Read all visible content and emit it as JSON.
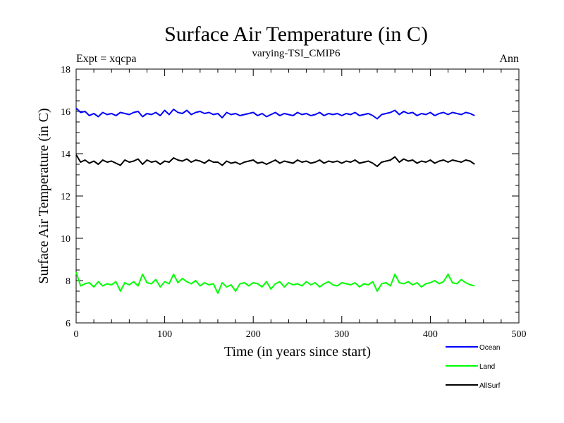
{
  "chart_data": {
    "type": "line",
    "title": "Surface Air Temperature (in C)",
    "subtitle": "varying-TSI_CMIP6",
    "experiment_label": "Expt = xqcpa",
    "period_label": "Ann",
    "xlabel": "Time (in years since start)",
    "ylabel": "Surface Air Temperature (in C)",
    "xlim": [
      0,
      500
    ],
    "ylim": [
      6,
      18
    ],
    "x_ticks": [
      0,
      100,
      200,
      300,
      400,
      500
    ],
    "y_ticks": [
      6,
      8,
      10,
      12,
      14,
      16,
      18
    ],
    "x_minor_step": 20,
    "y_minor_step": 0.5,
    "grid": false,
    "legend_position": "bottom-right",
    "series": [
      {
        "name": "Ocean",
        "color": "#0000ff",
        "x": [
          0,
          5,
          10,
          15,
          20,
          25,
          30,
          35,
          40,
          45,
          50,
          55,
          60,
          65,
          70,
          75,
          80,
          85,
          90,
          95,
          100,
          105,
          110,
          115,
          120,
          125,
          130,
          135,
          140,
          145,
          150,
          155,
          160,
          165,
          170,
          175,
          180,
          185,
          190,
          195,
          200,
          205,
          210,
          215,
          220,
          225,
          230,
          235,
          240,
          245,
          250,
          255,
          260,
          265,
          270,
          275,
          280,
          285,
          290,
          295,
          300,
          305,
          310,
          315,
          320,
          325,
          330,
          335,
          340,
          345,
          350,
          355,
          360,
          365,
          370,
          375,
          380,
          385,
          390,
          395,
          400,
          405,
          410,
          415,
          420,
          425,
          430,
          435,
          440,
          445,
          450
        ],
        "values": [
          16.15,
          15.95,
          16.0,
          15.8,
          15.9,
          15.75,
          15.95,
          15.85,
          15.9,
          15.8,
          15.95,
          15.9,
          15.85,
          15.95,
          16.0,
          15.75,
          15.9,
          15.85,
          15.95,
          15.8,
          16.05,
          15.85,
          16.1,
          15.95,
          15.9,
          16.05,
          15.85,
          15.95,
          16.0,
          15.9,
          15.95,
          15.85,
          15.9,
          15.7,
          15.95,
          15.85,
          15.9,
          15.8,
          15.85,
          15.9,
          15.95,
          15.8,
          15.9,
          15.75,
          15.85,
          15.95,
          15.8,
          15.9,
          15.85,
          15.8,
          15.95,
          15.85,
          15.9,
          15.8,
          15.85,
          15.95,
          15.8,
          15.9,
          15.85,
          15.9,
          15.8,
          15.9,
          15.85,
          15.95,
          15.8,
          15.85,
          15.9,
          15.8,
          15.65,
          15.85,
          15.9,
          15.95,
          16.05,
          15.85,
          16.0,
          15.9,
          15.95,
          15.8,
          15.9,
          15.85,
          15.95,
          15.8,
          15.9,
          15.95,
          15.85,
          15.95,
          15.9,
          15.85,
          15.95,
          15.9,
          15.8
        ]
      },
      {
        "name": "Land",
        "color": "#00ff00",
        "x": [
          0,
          5,
          10,
          15,
          20,
          25,
          30,
          35,
          40,
          45,
          50,
          55,
          60,
          65,
          70,
          75,
          80,
          85,
          90,
          95,
          100,
          105,
          110,
          115,
          120,
          125,
          130,
          135,
          140,
          145,
          150,
          155,
          160,
          165,
          170,
          175,
          180,
          185,
          190,
          195,
          200,
          205,
          210,
          215,
          220,
          225,
          230,
          235,
          240,
          245,
          250,
          255,
          260,
          265,
          270,
          275,
          280,
          285,
          290,
          295,
          300,
          305,
          310,
          315,
          320,
          325,
          330,
          335,
          340,
          345,
          350,
          355,
          360,
          365,
          370,
          375,
          380,
          385,
          390,
          395,
          400,
          405,
          410,
          415,
          420,
          425,
          430,
          435,
          440,
          445,
          450
        ],
        "values": [
          8.4,
          7.75,
          7.85,
          7.9,
          7.7,
          7.95,
          7.75,
          7.85,
          7.8,
          7.95,
          7.5,
          7.9,
          7.8,
          7.95,
          7.75,
          8.3,
          7.9,
          7.85,
          8.05,
          7.7,
          7.95,
          7.85,
          8.3,
          7.9,
          8.1,
          7.95,
          7.85,
          8.0,
          7.75,
          7.9,
          7.8,
          7.85,
          7.4,
          7.9,
          7.7,
          7.8,
          7.5,
          7.85,
          7.9,
          7.75,
          7.9,
          7.85,
          7.7,
          7.95,
          7.6,
          7.85,
          7.95,
          7.7,
          7.9,
          7.8,
          7.85,
          7.75,
          7.95,
          7.8,
          7.9,
          7.7,
          7.85,
          7.95,
          7.8,
          7.75,
          7.9,
          7.85,
          7.8,
          7.9,
          7.7,
          7.85,
          7.8,
          7.95,
          7.5,
          7.85,
          7.9,
          7.75,
          8.3,
          7.9,
          7.85,
          7.95,
          7.8,
          7.9,
          7.7,
          7.85,
          7.9,
          8.0,
          7.85,
          7.95,
          8.3,
          7.9,
          7.85,
          8.05,
          7.9,
          7.8,
          7.75
        ]
      },
      {
        "name": "AllSurf",
        "color": "#000000",
        "x": [
          0,
          5,
          10,
          15,
          20,
          25,
          30,
          35,
          40,
          45,
          50,
          55,
          60,
          65,
          70,
          75,
          80,
          85,
          90,
          95,
          100,
          105,
          110,
          115,
          120,
          125,
          130,
          135,
          140,
          145,
          150,
          155,
          160,
          165,
          170,
          175,
          180,
          185,
          190,
          195,
          200,
          205,
          210,
          215,
          220,
          225,
          230,
          235,
          240,
          245,
          250,
          255,
          260,
          265,
          270,
          275,
          280,
          285,
          290,
          295,
          300,
          305,
          310,
          315,
          320,
          325,
          330,
          335,
          340,
          345,
          350,
          355,
          360,
          365,
          370,
          375,
          380,
          385,
          390,
          395,
          400,
          405,
          410,
          415,
          420,
          425,
          430,
          435,
          440,
          445,
          450
        ],
        "values": [
          13.95,
          13.6,
          13.7,
          13.55,
          13.65,
          13.5,
          13.7,
          13.6,
          13.65,
          13.55,
          13.45,
          13.7,
          13.6,
          13.65,
          13.75,
          13.5,
          13.7,
          13.6,
          13.65,
          13.5,
          13.65,
          13.6,
          13.8,
          13.7,
          13.65,
          13.75,
          13.6,
          13.7,
          13.65,
          13.55,
          13.7,
          13.6,
          13.6,
          13.45,
          13.65,
          13.55,
          13.6,
          13.5,
          13.6,
          13.65,
          13.7,
          13.55,
          13.6,
          13.5,
          13.6,
          13.7,
          13.55,
          13.65,
          13.6,
          13.55,
          13.7,
          13.6,
          13.65,
          13.55,
          13.6,
          13.7,
          13.55,
          13.65,
          13.6,
          13.65,
          13.55,
          13.65,
          13.6,
          13.7,
          13.55,
          13.6,
          13.65,
          13.55,
          13.4,
          13.6,
          13.65,
          13.7,
          13.85,
          13.6,
          13.75,
          13.65,
          13.7,
          13.55,
          13.65,
          13.6,
          13.7,
          13.55,
          13.65,
          13.7,
          13.6,
          13.7,
          13.65,
          13.6,
          13.7,
          13.65,
          13.5
        ]
      }
    ]
  }
}
